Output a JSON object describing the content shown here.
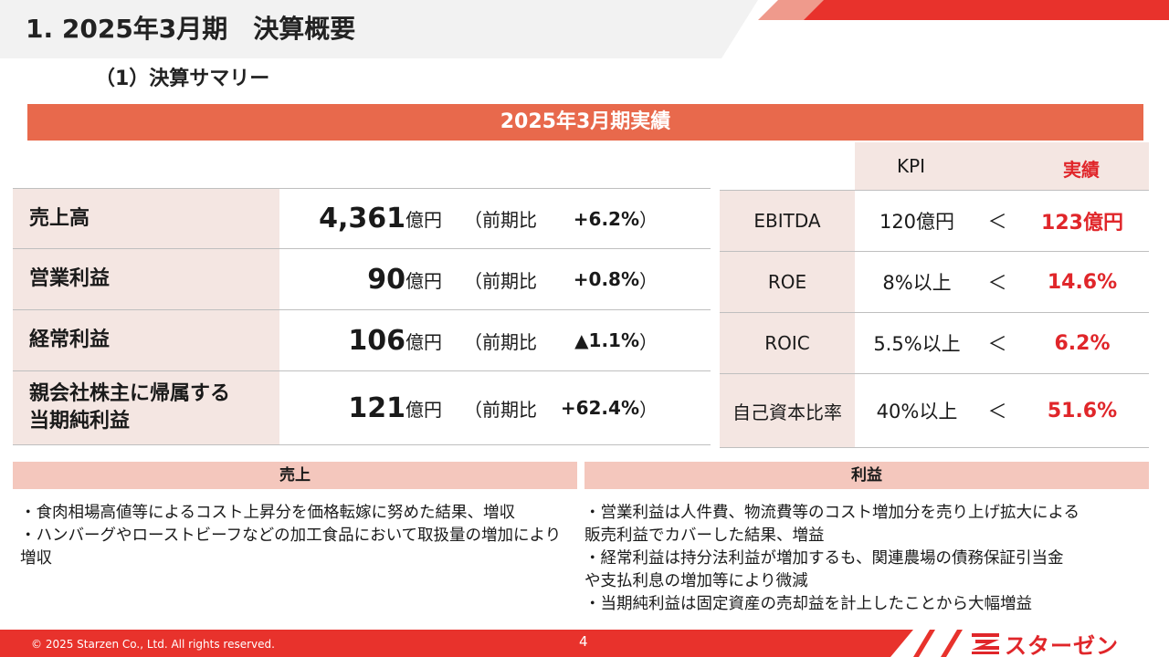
{
  "header": {
    "title": "1. 2025年3月期　決算概要",
    "subtitle": "（1）決算サマリー"
  },
  "banner": "2025年3月期実績",
  "financials": [
    {
      "label": "売上高",
      "value": "4,361",
      "unit": "億円",
      "compare": "（前期比",
      "change": "+6.2%",
      "close": "）"
    },
    {
      "label": "営業利益",
      "value": "90",
      "unit": "億円",
      "compare": "（前期比",
      "change": "+0.8%",
      "close": "）"
    },
    {
      "label": "経常利益",
      "value": "106",
      "unit": "億円",
      "compare": "（前期比",
      "change": "▲1.1%",
      "close": "）"
    },
    {
      "label": "親会社株主に帰属する\n当期純利益",
      "value": "121",
      "unit": "億円",
      "compare": "（前期比",
      "change": "+62.4%",
      "close": "）"
    }
  ],
  "kpi": {
    "header_kpi": "KPI",
    "header_actual": "実績",
    "rows": [
      {
        "name": "EBITDA",
        "target": "120億円",
        "op": "＜",
        "actual": "123億円"
      },
      {
        "name": "ROE",
        "target": "8%以上",
        "op": "＜",
        "actual": "14.6%"
      },
      {
        "name": "ROIC",
        "target": "5.5%以上",
        "op": "＜",
        "actual": "6.2%"
      },
      {
        "name": "自己資本比率",
        "target": "40%以上",
        "op": "＜",
        "actual": "51.6%"
      }
    ]
  },
  "sections": {
    "sales": {
      "heading": "売上",
      "lines": [
        "・食肉相場高値等によるコスト上昇分を価格転嫁に努めた結果、増収",
        "・ハンバーグやローストビーフなどの加工食品において取扱量の増加により\n増収"
      ]
    },
    "profit": {
      "heading": "利益",
      "lines": [
        "・営業利益は人件費、物流費等のコスト増加分を売り上げ拡大による\n販売利益でカバーした結果、増益",
        "・経常利益は持分法利益が増加するも、関連農場の債務保証引当金\nや支払利息の増加等により微減",
        "・当期純利益は固定資産の売却益を計上したことから大幅増益"
      ]
    }
  },
  "footer": {
    "copyright": "© 2025 Starzen Co., Ltd. All rights reserved.",
    "page": "4",
    "logo_text": "スターゼン"
  },
  "colors": {
    "accent_red": "#e8322c",
    "banner_orange": "#e8694c",
    "label_bg": "#f4e6e2",
    "section_bg": "#f4c7bd",
    "actual_red": "#e0262a"
  }
}
